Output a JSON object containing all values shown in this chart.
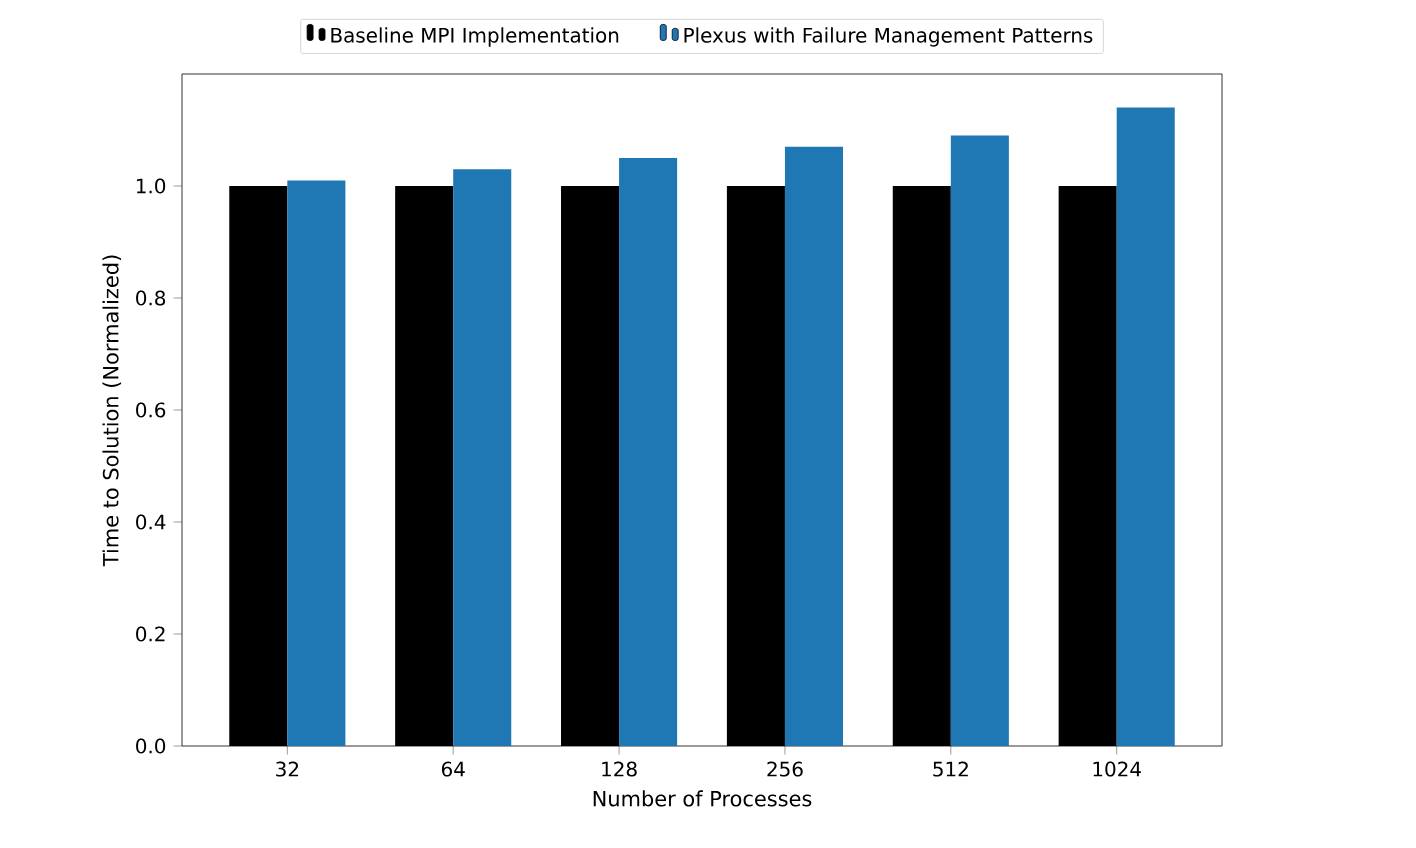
{
  "chart_data": {
    "type": "bar",
    "xlabel": "Number of Processes",
    "ylabel": "Time to Solution (Normalized)",
    "categories": [
      "32",
      "64",
      "128",
      "256",
      "512",
      "1024"
    ],
    "series": [
      {
        "name": "Baseline MPI Implementation",
        "color": "#000000",
        "values": [
          1.0,
          1.0,
          1.0,
          1.0,
          1.0,
          1.0
        ]
      },
      {
        "name": "Plexus with Failure Management Patterns",
        "color": "#1f77b4",
        "values": [
          1.01,
          1.03,
          1.05,
          1.07,
          1.09,
          1.14
        ]
      }
    ],
    "ylim": [
      0,
      1.2
    ],
    "yticks": [
      {
        "value": 0,
        "label": "0.0"
      },
      {
        "value": 0.2,
        "label": "0.2"
      },
      {
        "value": 0.4,
        "label": "0.4"
      },
      {
        "value": 0.6,
        "label": "0.6"
      },
      {
        "value": 0.8,
        "label": "0.8"
      },
      {
        "value": 1.0,
        "label": "1.0"
      }
    ],
    "grid": false,
    "legend": "top"
  }
}
